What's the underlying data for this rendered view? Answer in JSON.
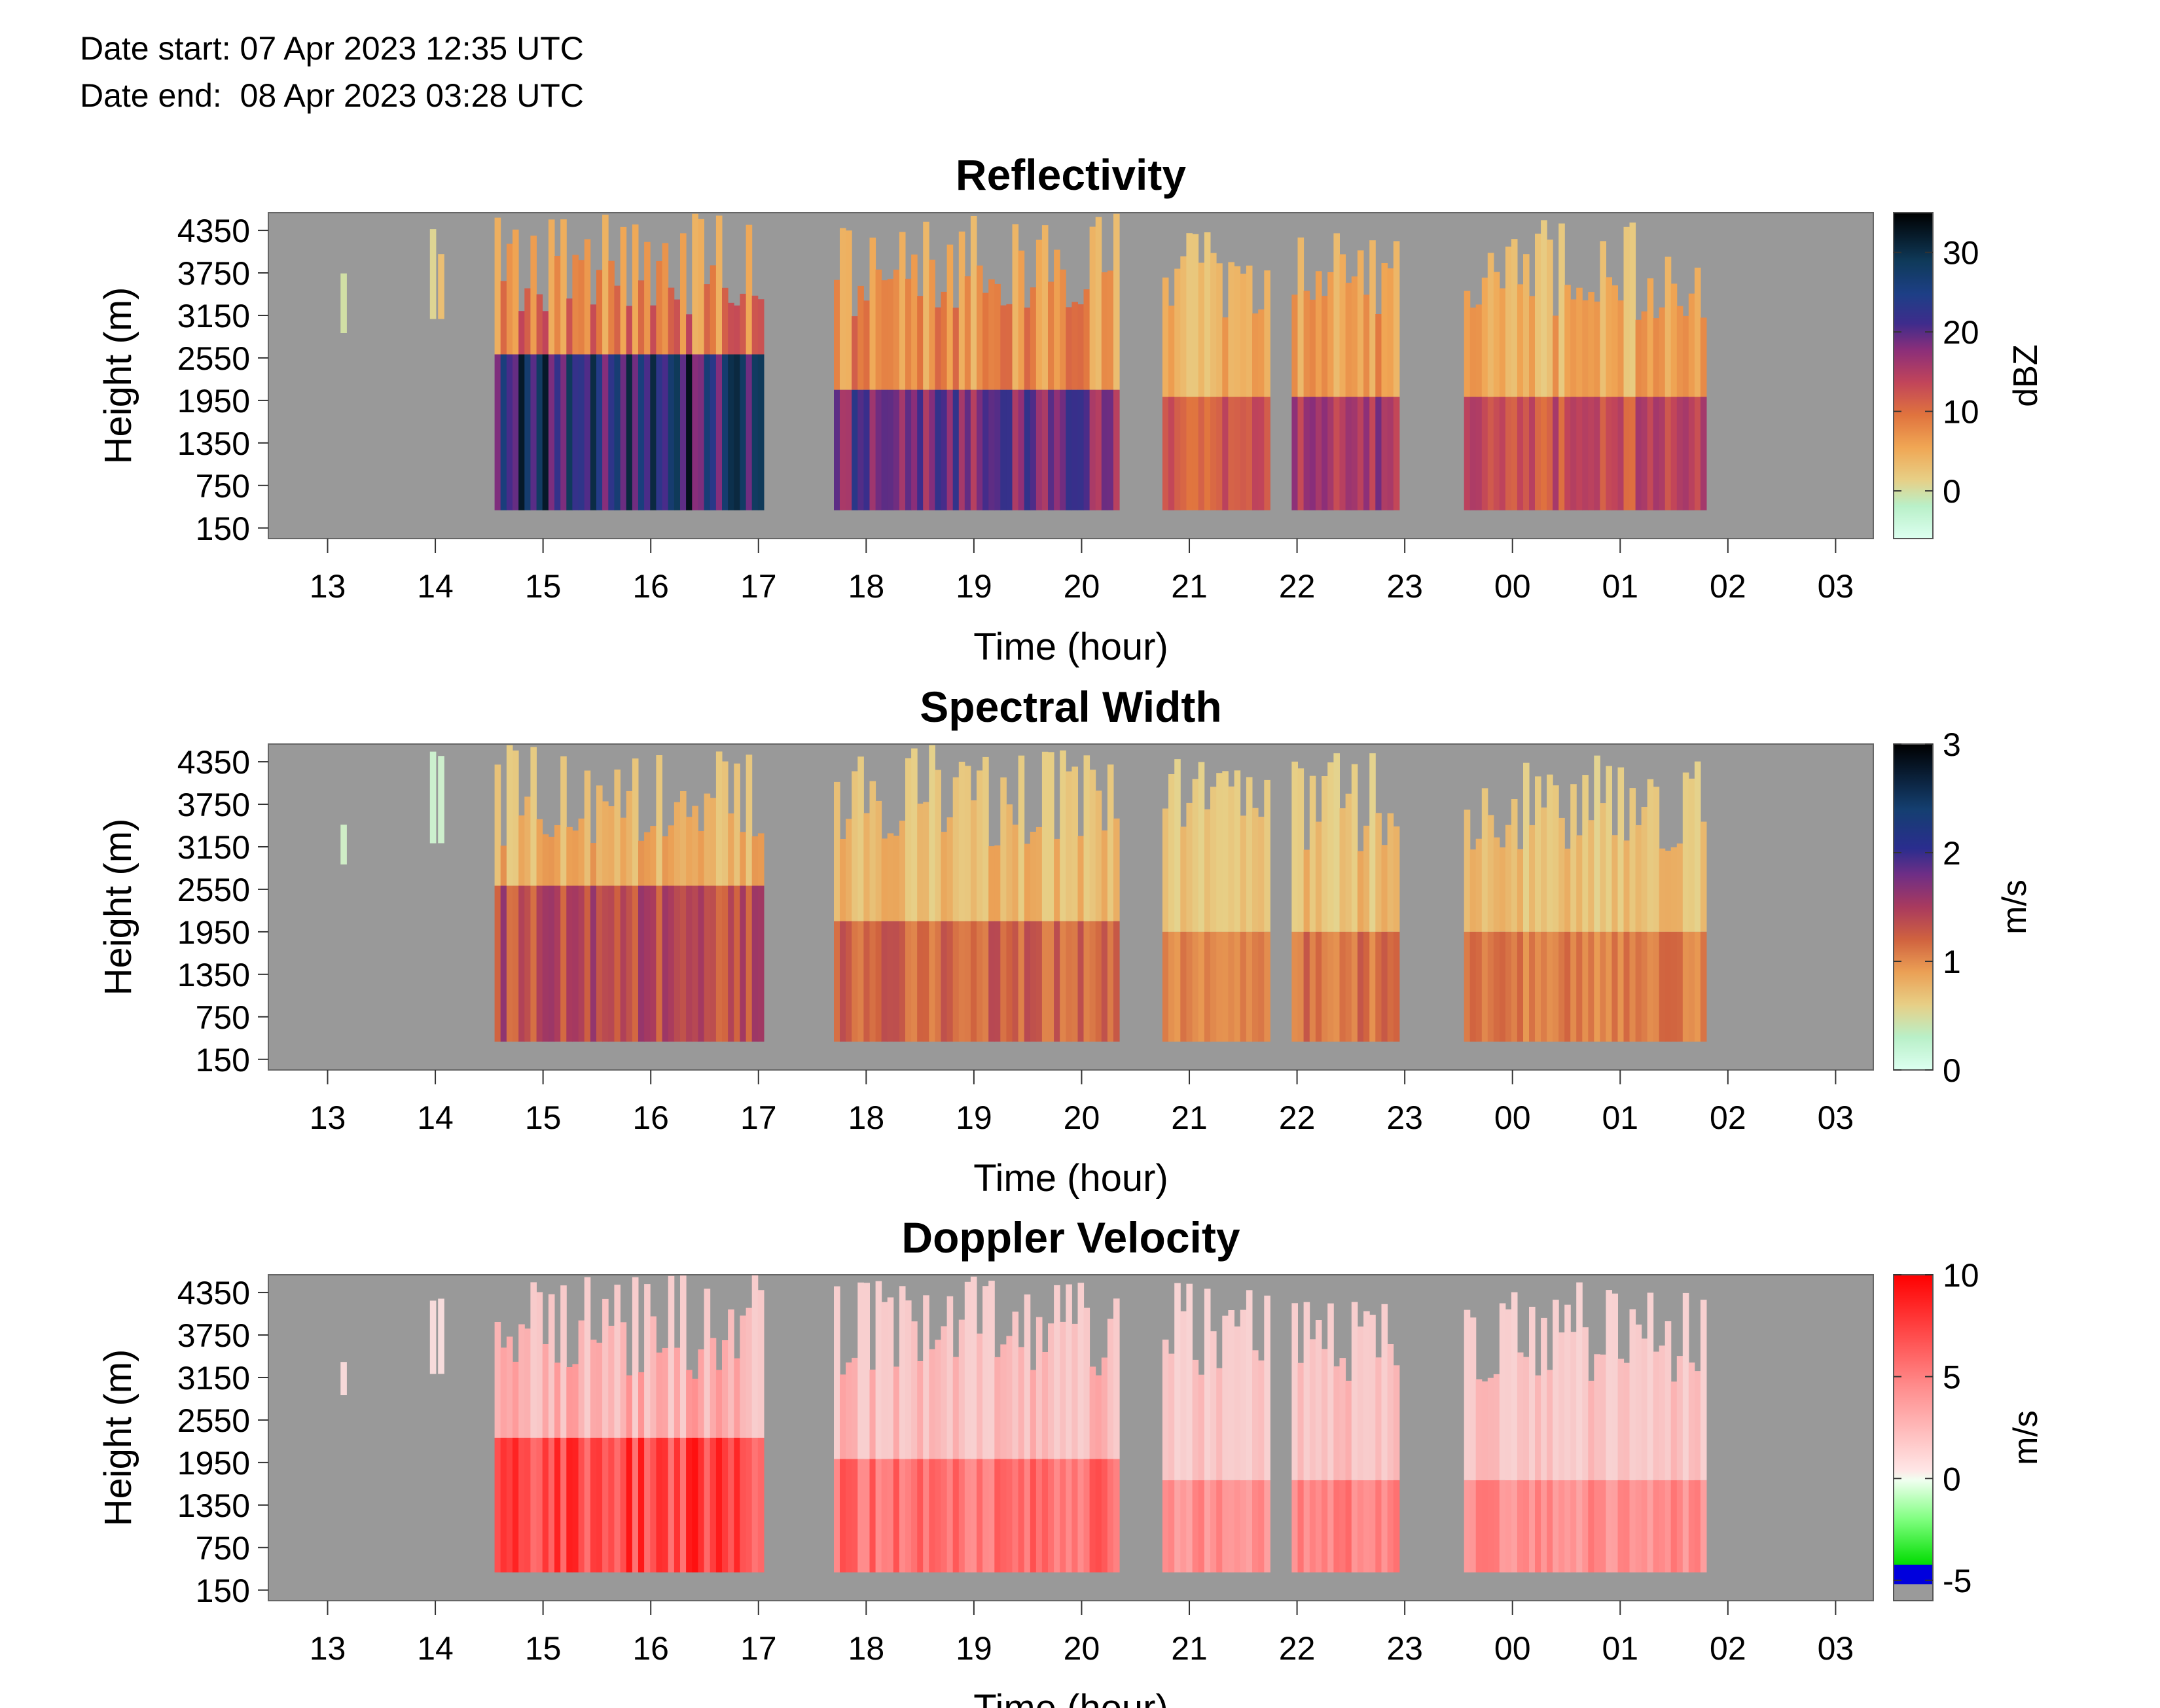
{
  "header": {
    "date_start": "Date start: 07 Apr 2023 12:35 UTC",
    "date_end": "Date end:  08 Apr 2023 03:28 UTC"
  },
  "chart_data": [
    {
      "type": "heatmap",
      "title": "Reflectivity",
      "xlabel": "Time (hour)",
      "ylabel": "Height (m)",
      "x_ticks": [
        "13",
        "14",
        "15",
        "16",
        "17",
        "18",
        "19",
        "20",
        "21",
        "22",
        "23",
        "00",
        "01",
        "02",
        "03"
      ],
      "y_ticks": [
        150,
        750,
        1350,
        1950,
        2550,
        3150,
        3750,
        4350
      ],
      "colorbar": {
        "label": "dBZ",
        "ticks": [
          0,
          10,
          20,
          30
        ],
        "range": [
          -6,
          35
        ]
      },
      "background_color": "#999999",
      "echo_segments": [
        {
          "start": 13.12,
          "end": 13.18,
          "base": 2900,
          "top": 3800,
          "core_top": 0,
          "intensity": 0.25
        },
        {
          "start": 13.95,
          "end": 14.1,
          "base": 3100,
          "top": 4500,
          "core_top": 0,
          "intensity": 0.35
        },
        {
          "start": 14.55,
          "end": 17.05,
          "base": 400,
          "top": 4600,
          "core_top": 2600,
          "intensity": 1.0
        },
        {
          "start": 17.7,
          "end": 20.35,
          "base": 400,
          "top": 4600,
          "core_top": 2100,
          "intensity": 0.85
        },
        {
          "start": 20.75,
          "end": 21.75,
          "base": 400,
          "top": 4500,
          "core_top": 2000,
          "intensity": 0.6
        },
        {
          "start": 21.95,
          "end": 22.95,
          "base": 400,
          "top": 4500,
          "core_top": 2000,
          "intensity": 0.75
        },
        {
          "start": 23.55,
          "end": 25.8,
          "base": 400,
          "top": 4500,
          "core_top": 2000,
          "intensity": 0.65
        }
      ]
    },
    {
      "type": "heatmap",
      "title": "Spectral Width",
      "xlabel": "Time (hour)",
      "ylabel": "Height (m)",
      "x_ticks": [
        "13",
        "14",
        "15",
        "16",
        "17",
        "18",
        "19",
        "20",
        "21",
        "22",
        "23",
        "00",
        "01",
        "02",
        "03"
      ],
      "y_ticks": [
        150,
        750,
        1350,
        1950,
        2550,
        3150,
        3750,
        4350
      ],
      "colorbar": {
        "label": "m/s",
        "ticks": [
          0,
          1,
          2,
          3
        ],
        "range": [
          0,
          3
        ]
      },
      "background_color": "#999999",
      "echo_segments": [
        {
          "start": 13.12,
          "end": 13.18,
          "base": 2900,
          "top": 3600,
          "core_top": 0,
          "intensity": 0.1
        },
        {
          "start": 13.95,
          "end": 14.1,
          "base": 3200,
          "top": 4500,
          "core_top": 0,
          "intensity": 0.1
        },
        {
          "start": 14.55,
          "end": 17.05,
          "base": 400,
          "top": 4600,
          "core_top": 2600,
          "intensity": 0.85
        },
        {
          "start": 17.7,
          "end": 20.35,
          "base": 400,
          "top": 4600,
          "core_top": 2100,
          "intensity": 0.75
        },
        {
          "start": 20.75,
          "end": 21.75,
          "base": 400,
          "top": 4500,
          "core_top": 1950,
          "intensity": 0.65
        },
        {
          "start": 21.95,
          "end": 22.95,
          "base": 400,
          "top": 4500,
          "core_top": 1950,
          "intensity": 0.7
        },
        {
          "start": 23.55,
          "end": 25.8,
          "base": 400,
          "top": 4500,
          "core_top": 1950,
          "intensity": 0.65
        }
      ]
    },
    {
      "type": "heatmap",
      "title": "Doppler Velocity",
      "xlabel": "Time (hour)",
      "ylabel": "Height (m)",
      "x_ticks": [
        "13",
        "14",
        "15",
        "16",
        "17",
        "18",
        "19",
        "20",
        "21",
        "22",
        "23",
        "00",
        "01",
        "02",
        "03"
      ],
      "y_ticks": [
        150,
        750,
        1350,
        1950,
        2550,
        3150,
        3750,
        4350
      ],
      "colorbar": {
        "label": "m/s",
        "ticks": [
          -5,
          0,
          5,
          10
        ],
        "range": [
          -6,
          10
        ]
      },
      "background_color": "#999999",
      "echo_segments": [
        {
          "start": 13.12,
          "end": 13.18,
          "base": 2900,
          "top": 3600,
          "core_top": 0,
          "intensity": 0.2
        },
        {
          "start": 13.95,
          "end": 14.1,
          "base": 3200,
          "top": 4500,
          "core_top": 0,
          "intensity": 0.2
        },
        {
          "start": 14.55,
          "end": 17.05,
          "base": 400,
          "top": 4600,
          "core_top": 2300,
          "intensity": 1.0
        },
        {
          "start": 17.7,
          "end": 20.35,
          "base": 400,
          "top": 4600,
          "core_top": 2000,
          "intensity": 0.85
        },
        {
          "start": 20.75,
          "end": 21.75,
          "base": 400,
          "top": 4500,
          "core_top": 1700,
          "intensity": 0.7
        },
        {
          "start": 21.95,
          "end": 22.95,
          "base": 400,
          "top": 4500,
          "core_top": 1700,
          "intensity": 0.75
        },
        {
          "start": 23.55,
          "end": 25.8,
          "base": 400,
          "top": 4500,
          "core_top": 1700,
          "intensity": 0.7
        }
      ]
    }
  ]
}
